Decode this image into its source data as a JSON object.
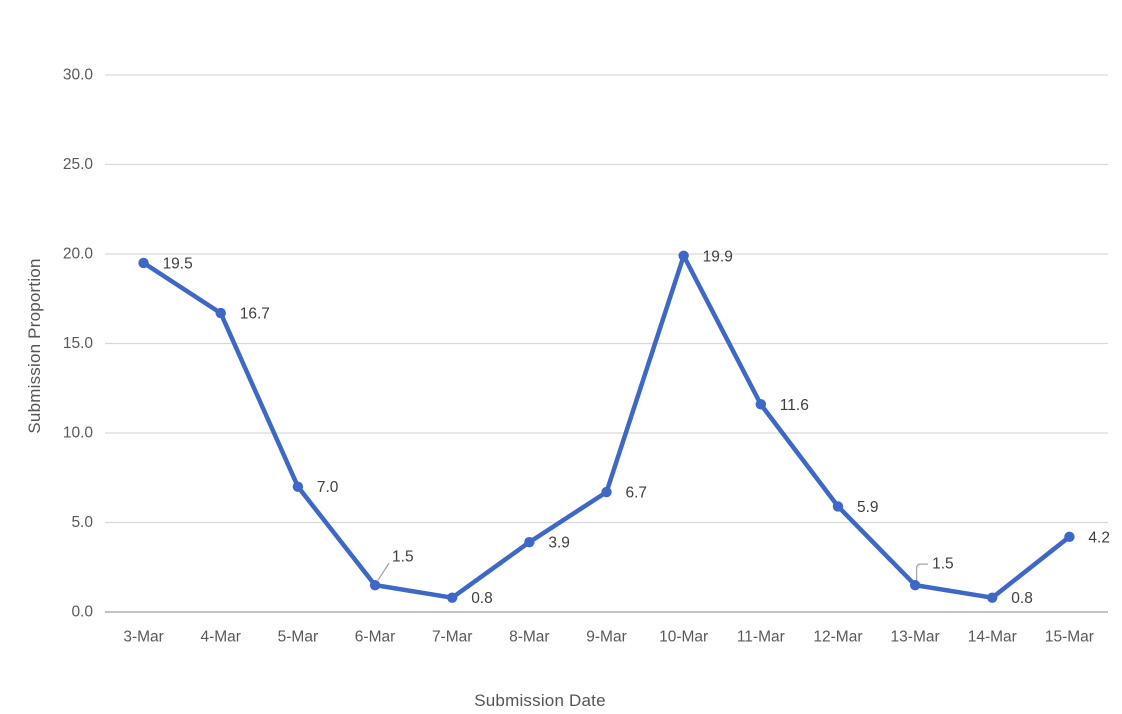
{
  "chart_data": {
    "type": "line",
    "title": "",
    "xlabel": "Submission Date",
    "ylabel": "Submission Proportion",
    "categories": [
      "3-Mar",
      "4-Mar",
      "5-Mar",
      "6-Mar",
      "7-Mar",
      "8-Mar",
      "9-Mar",
      "10-Mar",
      "11-Mar",
      "12-Mar",
      "13-Mar",
      "14-Mar",
      "15-Mar"
    ],
    "series": [
      {
        "name": "Submission Proportion",
        "values": [
          19.5,
          16.7,
          7.0,
          1.5,
          0.8,
          3.9,
          6.7,
          19.9,
          11.6,
          5.9,
          1.5,
          0.8,
          4.2
        ]
      }
    ],
    "data_labels": [
      "19.5",
      "16.7",
      "7.0",
      "1.5",
      "0.8",
      "3.9",
      "6.7",
      "19.9",
      "11.6",
      "5.9",
      "1.5",
      "0.8",
      "4.2"
    ],
    "callout_label_indices": [
      3,
      10
    ],
    "ylim": [
      0,
      30
    ],
    "ytick_step": 5,
    "ytick_labels": [
      "0.0",
      "5.0",
      "10.0",
      "15.0",
      "20.0",
      "25.0",
      "30.0"
    ],
    "grid": true,
    "legend_position": "none",
    "colors": {
      "series": "#3d68c5",
      "gridline": "#d9d9d9",
      "axis_line": "#c3c3c3",
      "tick_label": "#595959",
      "data_label": "#3f3f3f",
      "leader_line": "#a6a6a6",
      "background": "#ffffff"
    }
  }
}
